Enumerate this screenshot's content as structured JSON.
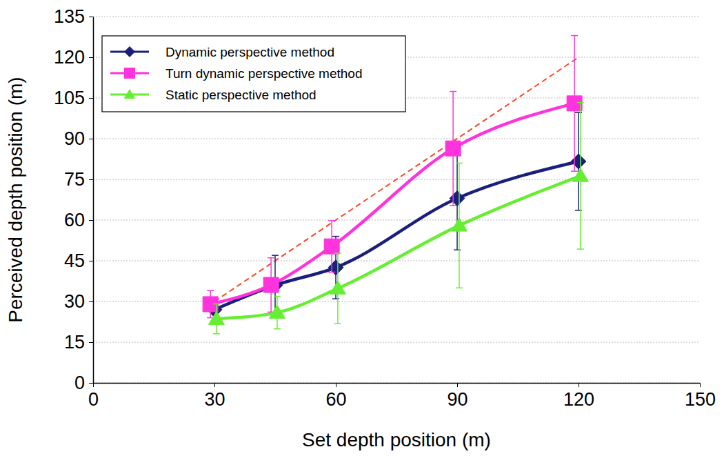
{
  "chart_data": {
    "type": "line",
    "xlabel": "Set depth position (m)",
    "ylabel": "Perceived depth position (m)",
    "xlim": [
      0,
      150
    ],
    "xticks": [
      0,
      30,
      60,
      90,
      120,
      150
    ],
    "ylim": [
      0,
      135
    ],
    "yticks": [
      0,
      15,
      30,
      45,
      60,
      75,
      90,
      105,
      120,
      135
    ],
    "grid": true,
    "legend": "upper left",
    "series": [
      {
        "name": "Dynamic perspective method",
        "color": "#1b1f7c",
        "marker": "diamond",
        "line_style": "solid",
        "x": [
          30,
          45,
          60,
          90,
          120
        ],
        "values": [
          27,
          36,
          42.5,
          68,
          81.6
        ],
        "errors": [
          4,
          11,
          11.5,
          19,
          18
        ]
      },
      {
        "name": "Turn dynamic perspective method",
        "color": "#ff33dd",
        "marker": "square",
        "line_style": "solid",
        "x": [
          29,
          44,
          59,
          89,
          119
        ],
        "values": [
          29,
          36.1,
          50.3,
          86.4,
          103
        ],
        "errors": [
          5,
          10,
          9.5,
          21,
          25
        ]
      },
      {
        "name": "Static perspective method",
        "color": "#66ee33",
        "marker": "triangle",
        "line_style": "solid",
        "x": [
          30.5,
          45.5,
          60.5,
          90.5,
          120.5
        ],
        "values": [
          23.6,
          25.9,
          34.8,
          58,
          76.3
        ],
        "errors": [
          5.5,
          6,
          13,
          23,
          27
        ]
      },
      {
        "color": "#ff4422",
        "marker": "none",
        "line_style": "dashed",
        "x": [
          30,
          120
        ],
        "values": [
          30,
          120
        ]
      }
    ]
  }
}
